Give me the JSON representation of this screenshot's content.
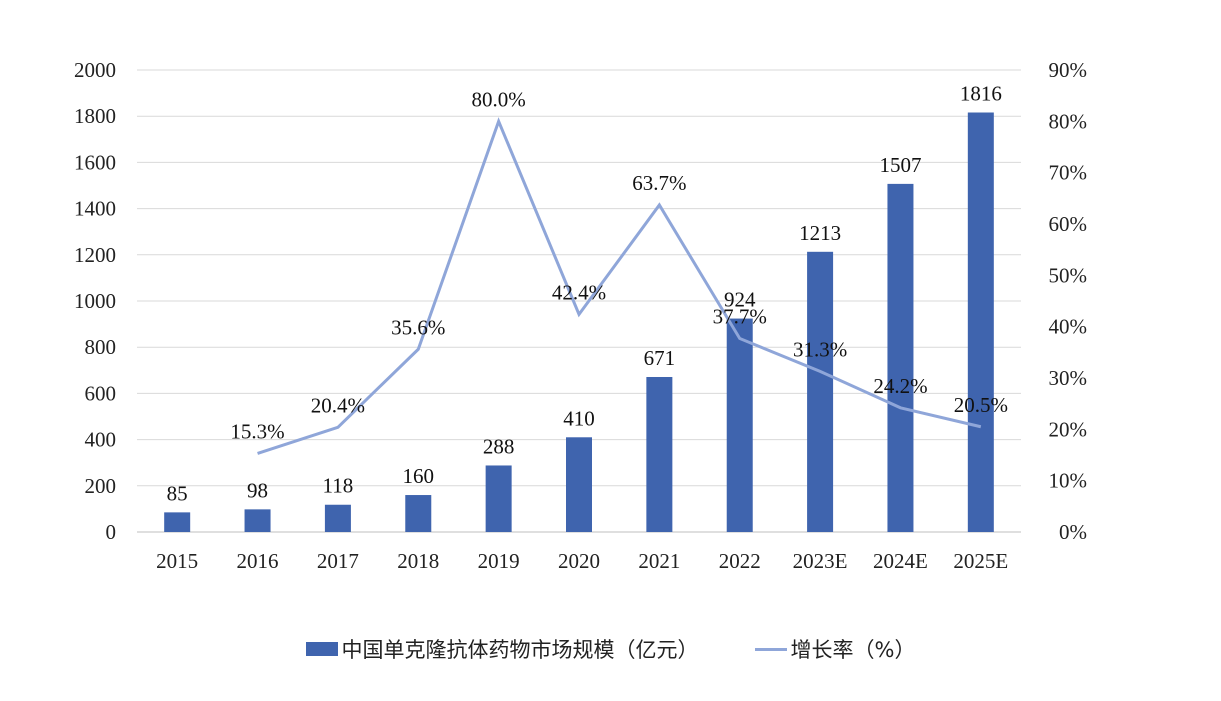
{
  "chart_data": {
    "type": "bar+line",
    "categories": [
      "2015",
      "2016",
      "2017",
      "2018",
      "2019",
      "2020",
      "2021",
      "2022",
      "2023E",
      "2024E",
      "2025E"
    ],
    "series": [
      {
        "name": "中国单克隆抗体药物市场规模（亿元）",
        "type": "bar",
        "axis": "left",
        "values": [
          85,
          98,
          118,
          160,
          288,
          410,
          671,
          924,
          1213,
          1507,
          1816
        ],
        "labels": [
          "85",
          "98",
          "118",
          "160",
          "288",
          "410",
          "671",
          "924",
          "1213",
          "1507",
          "1816"
        ],
        "color": "#3F64AE"
      },
      {
        "name": "增长率（%）",
        "type": "line",
        "axis": "right",
        "values": [
          null,
          15.3,
          20.4,
          35.6,
          80.0,
          42.4,
          63.7,
          37.7,
          31.3,
          24.2,
          20.5
        ],
        "labels": [
          "",
          "15.3%",
          "20.4%",
          "35.6%",
          "80.0%",
          "42.4%",
          "63.7%",
          "37.7%",
          "31.3%",
          "24.2%",
          "20.5%"
        ],
        "color": "#8FA6D9"
      }
    ],
    "ylim": [
      0,
      2000
    ],
    "yticks": [
      "0",
      "200",
      "400",
      "600",
      "800",
      "1000",
      "1200",
      "1400",
      "1600",
      "1800",
      "2000"
    ],
    "y2lim": [
      0,
      90
    ],
    "y2ticks": [
      "0%",
      "10%",
      "20%",
      "30%",
      "40%",
      "50%",
      "60%",
      "70%",
      "80%",
      "90%"
    ],
    "grid": true,
    "legend": "bottom"
  }
}
